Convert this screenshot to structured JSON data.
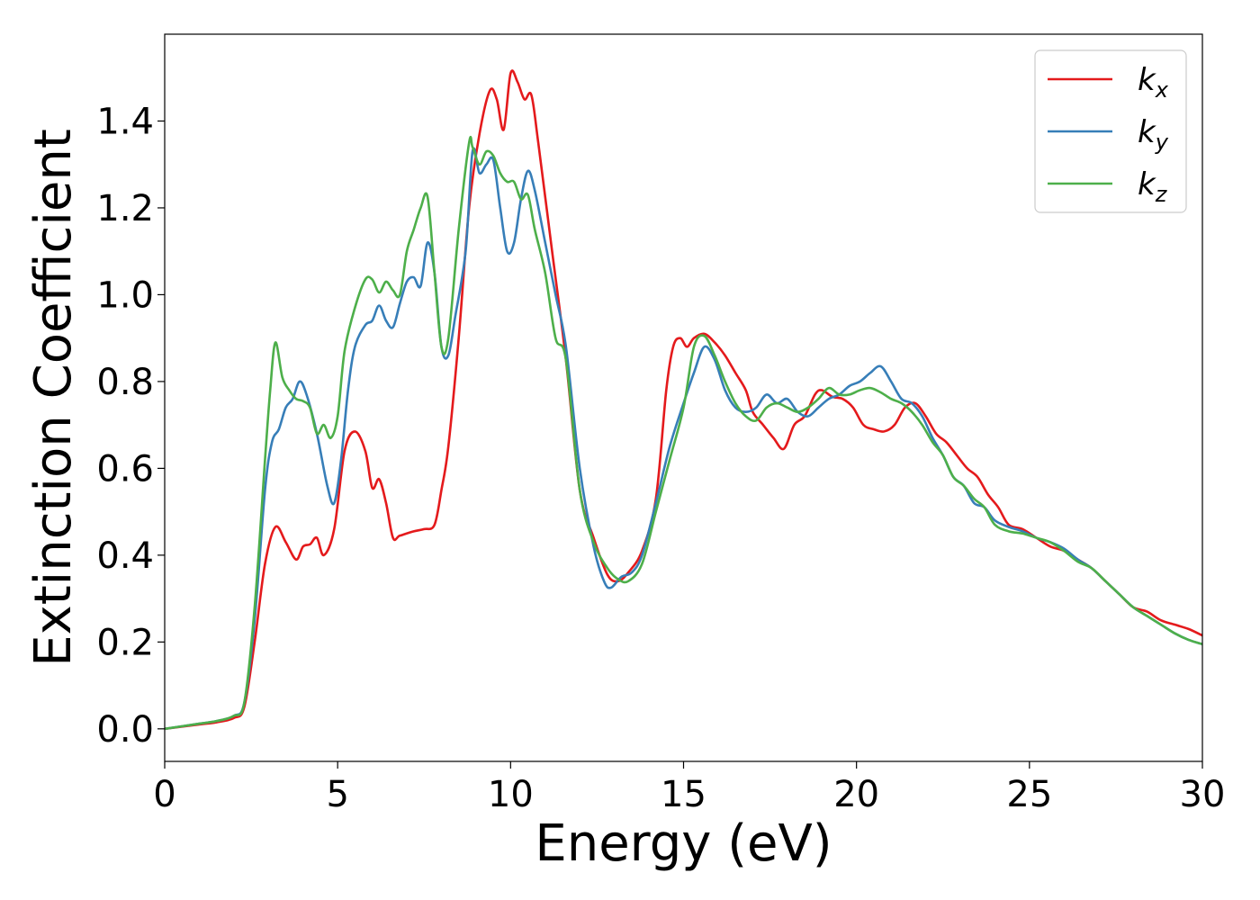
{
  "chart_data": {
    "type": "line",
    "xlabel": "Energy (eV)",
    "ylabel": "Extinction Coefficient",
    "xlim": [
      0,
      30
    ],
    "ylim": [
      -0.075,
      1.6
    ],
    "xticks": [
      0,
      5,
      10,
      15,
      20,
      25,
      30
    ],
    "yticks": [
      0.0,
      0.2,
      0.4,
      0.6,
      0.8,
      1.0,
      1.2,
      1.4
    ],
    "ytick_labels": [
      "0.0",
      "0.2",
      "0.4",
      "0.6",
      "0.8",
      "1.0",
      "1.2",
      "1.4"
    ],
    "grid": false,
    "legend_position": "top-right",
    "series": [
      {
        "name": "k_x",
        "label_base": "k",
        "label_sub": "x",
        "color": "#e41a1c",
        "x": [
          0,
          1,
          1.5,
          2,
          2.3,
          2.6,
          2.9,
          3.2,
          3.5,
          3.8,
          4.0,
          4.2,
          4.4,
          4.6,
          4.9,
          5.2,
          5.5,
          5.8,
          6.0,
          6.2,
          6.4,
          6.6,
          6.8,
          7.2,
          7.5,
          7.8,
          8.0,
          8.2,
          8.5,
          8.8,
          9.1,
          9.4,
          9.6,
          9.8,
          10.0,
          10.2,
          10.4,
          10.6,
          10.8,
          11.2,
          11.6,
          12.0,
          12.4,
          12.8,
          13.1,
          13.4,
          13.8,
          14.2,
          14.5,
          14.7,
          14.9,
          15.1,
          15.3,
          15.6,
          15.9,
          16.2,
          16.5,
          16.8,
          17.0,
          17.3,
          17.6,
          17.9,
          18.2,
          18.5,
          18.8,
          19.0,
          19.3,
          19.6,
          19.9,
          20.2,
          20.5,
          20.8,
          21.1,
          21.4,
          21.7,
          22.0,
          22.3,
          22.6,
          22.9,
          23.2,
          23.5,
          23.8,
          24.1,
          24.4,
          24.8,
          25.2,
          25.6,
          26.0,
          26.4,
          26.8,
          27.2,
          27.6,
          28.0,
          28.4,
          28.8,
          29.2,
          29.6,
          30.0
        ],
        "y": [
          0.0,
          0.01,
          0.015,
          0.025,
          0.05,
          0.2,
          0.38,
          0.465,
          0.43,
          0.39,
          0.42,
          0.425,
          0.44,
          0.4,
          0.46,
          0.64,
          0.685,
          0.64,
          0.555,
          0.575,
          0.52,
          0.44,
          0.445,
          0.455,
          0.46,
          0.47,
          0.55,
          0.65,
          0.9,
          1.2,
          1.37,
          1.47,
          1.45,
          1.38,
          1.51,
          1.49,
          1.45,
          1.46,
          1.35,
          1.1,
          0.85,
          0.55,
          0.44,
          0.355,
          0.34,
          0.36,
          0.41,
          0.53,
          0.78,
          0.88,
          0.9,
          0.88,
          0.9,
          0.91,
          0.89,
          0.86,
          0.82,
          0.78,
          0.73,
          0.7,
          0.67,
          0.645,
          0.7,
          0.72,
          0.77,
          0.78,
          0.765,
          0.76,
          0.74,
          0.7,
          0.69,
          0.685,
          0.7,
          0.74,
          0.75,
          0.72,
          0.68,
          0.66,
          0.63,
          0.6,
          0.58,
          0.54,
          0.51,
          0.47,
          0.46,
          0.44,
          0.42,
          0.41,
          0.39,
          0.37,
          0.34,
          0.31,
          0.28,
          0.27,
          0.25,
          0.24,
          0.23,
          0.215
        ]
      },
      {
        "name": "k_y",
        "label_base": "k",
        "label_sub": "y",
        "color": "#377eb8",
        "x": [
          0,
          1,
          1.5,
          2,
          2.3,
          2.6,
          2.9,
          3.1,
          3.3,
          3.5,
          3.7,
          3.9,
          4.1,
          4.4,
          4.7,
          4.9,
          5.1,
          5.3,
          5.5,
          5.8,
          6.0,
          6.2,
          6.4,
          6.6,
          6.8,
          7.0,
          7.2,
          7.4,
          7.6,
          7.8,
          8.0,
          8.2,
          8.4,
          8.7,
          8.9,
          9.1,
          9.3,
          9.5,
          9.7,
          9.9,
          10.1,
          10.3,
          10.5,
          10.7,
          11.0,
          11.3,
          11.6,
          12.0,
          12.4,
          12.7,
          12.9,
          13.2,
          13.5,
          13.8,
          14.2,
          14.6,
          15.0,
          15.3,
          15.6,
          15.9,
          16.2,
          16.5,
          16.8,
          17.1,
          17.4,
          17.7,
          18.0,
          18.3,
          18.6,
          18.9,
          19.2,
          19.5,
          19.8,
          20.1,
          20.4,
          20.7,
          21.0,
          21.3,
          21.6,
          21.9,
          22.2,
          22.5,
          22.8,
          23.1,
          23.4,
          23.7,
          24.0,
          24.4,
          24.8,
          25.2,
          25.6,
          26.0,
          26.4,
          26.8,
          27.2,
          27.6,
          28.0,
          28.4,
          28.8,
          29.2,
          29.6,
          30.0
        ],
        "y": [
          0.0,
          0.012,
          0.018,
          0.03,
          0.06,
          0.25,
          0.55,
          0.66,
          0.69,
          0.74,
          0.76,
          0.8,
          0.77,
          0.68,
          0.56,
          0.52,
          0.62,
          0.78,
          0.88,
          0.93,
          0.94,
          0.975,
          0.94,
          0.925,
          0.98,
          1.03,
          1.04,
          1.02,
          1.12,
          1.05,
          0.88,
          0.86,
          0.95,
          1.1,
          1.33,
          1.28,
          1.3,
          1.31,
          1.2,
          1.1,
          1.12,
          1.22,
          1.285,
          1.24,
          1.12,
          1.0,
          0.88,
          0.6,
          0.42,
          0.34,
          0.325,
          0.35,
          0.36,
          0.4,
          0.52,
          0.65,
          0.75,
          0.82,
          0.88,
          0.85,
          0.78,
          0.74,
          0.73,
          0.74,
          0.77,
          0.75,
          0.76,
          0.73,
          0.72,
          0.74,
          0.76,
          0.77,
          0.79,
          0.8,
          0.82,
          0.835,
          0.8,
          0.76,
          0.75,
          0.72,
          0.67,
          0.63,
          0.58,
          0.56,
          0.52,
          0.51,
          0.48,
          0.465,
          0.455,
          0.44,
          0.43,
          0.415,
          0.39,
          0.37,
          0.34,
          0.31,
          0.28,
          0.26,
          0.24,
          0.22,
          0.205,
          0.195
        ]
      },
      {
        "name": "k_z",
        "label_base": "k",
        "label_sub": "z",
        "color": "#4daf4a",
        "x": [
          0,
          1,
          1.5,
          2,
          2.3,
          2.6,
          2.9,
          3.05,
          3.2,
          3.4,
          3.6,
          3.8,
          4.0,
          4.2,
          4.4,
          4.6,
          4.8,
          5.0,
          5.2,
          5.5,
          5.8,
          6.0,
          6.2,
          6.4,
          6.6,
          6.8,
          7.0,
          7.2,
          7.4,
          7.6,
          7.8,
          8.0,
          8.2,
          8.5,
          8.8,
          8.9,
          9.1,
          9.3,
          9.5,
          9.7,
          9.9,
          10.1,
          10.3,
          10.5,
          10.7,
          11.0,
          11.3,
          11.6,
          12.0,
          12.4,
          12.8,
          13.1,
          13.4,
          13.8,
          14.2,
          14.6,
          15.0,
          15.3,
          15.6,
          15.9,
          16.2,
          16.5,
          16.8,
          17.1,
          17.4,
          17.7,
          18.0,
          18.3,
          18.6,
          18.9,
          19.2,
          19.5,
          19.8,
          20.1,
          20.4,
          20.7,
          21.0,
          21.3,
          21.6,
          21.9,
          22.2,
          22.5,
          22.8,
          23.1,
          23.4,
          23.7,
          24.0,
          24.4,
          24.8,
          25.2,
          25.6,
          26.0,
          26.4,
          26.8,
          27.2,
          27.6,
          28.0,
          28.4,
          28.8,
          29.2,
          29.6,
          30.0
        ],
        "y": [
          0.0,
          0.012,
          0.018,
          0.03,
          0.06,
          0.28,
          0.62,
          0.78,
          0.89,
          0.81,
          0.78,
          0.76,
          0.755,
          0.74,
          0.68,
          0.7,
          0.67,
          0.72,
          0.87,
          0.97,
          1.035,
          1.035,
          1.005,
          1.03,
          1.01,
          1.0,
          1.1,
          1.15,
          1.2,
          1.225,
          1.05,
          0.88,
          0.9,
          1.15,
          1.35,
          1.34,
          1.3,
          1.33,
          1.32,
          1.28,
          1.26,
          1.26,
          1.22,
          1.23,
          1.15,
          1.05,
          0.9,
          0.85,
          0.55,
          0.43,
          0.37,
          0.345,
          0.34,
          0.38,
          0.5,
          0.62,
          0.74,
          0.88,
          0.905,
          0.86,
          0.8,
          0.75,
          0.72,
          0.71,
          0.74,
          0.75,
          0.74,
          0.73,
          0.74,
          0.76,
          0.785,
          0.77,
          0.77,
          0.78,
          0.785,
          0.775,
          0.76,
          0.75,
          0.73,
          0.7,
          0.66,
          0.63,
          0.58,
          0.56,
          0.53,
          0.51,
          0.47,
          0.455,
          0.45,
          0.44,
          0.43,
          0.41,
          0.385,
          0.37,
          0.34,
          0.31,
          0.28,
          0.26,
          0.24,
          0.22,
          0.205,
          0.195
        ]
      }
    ]
  }
}
